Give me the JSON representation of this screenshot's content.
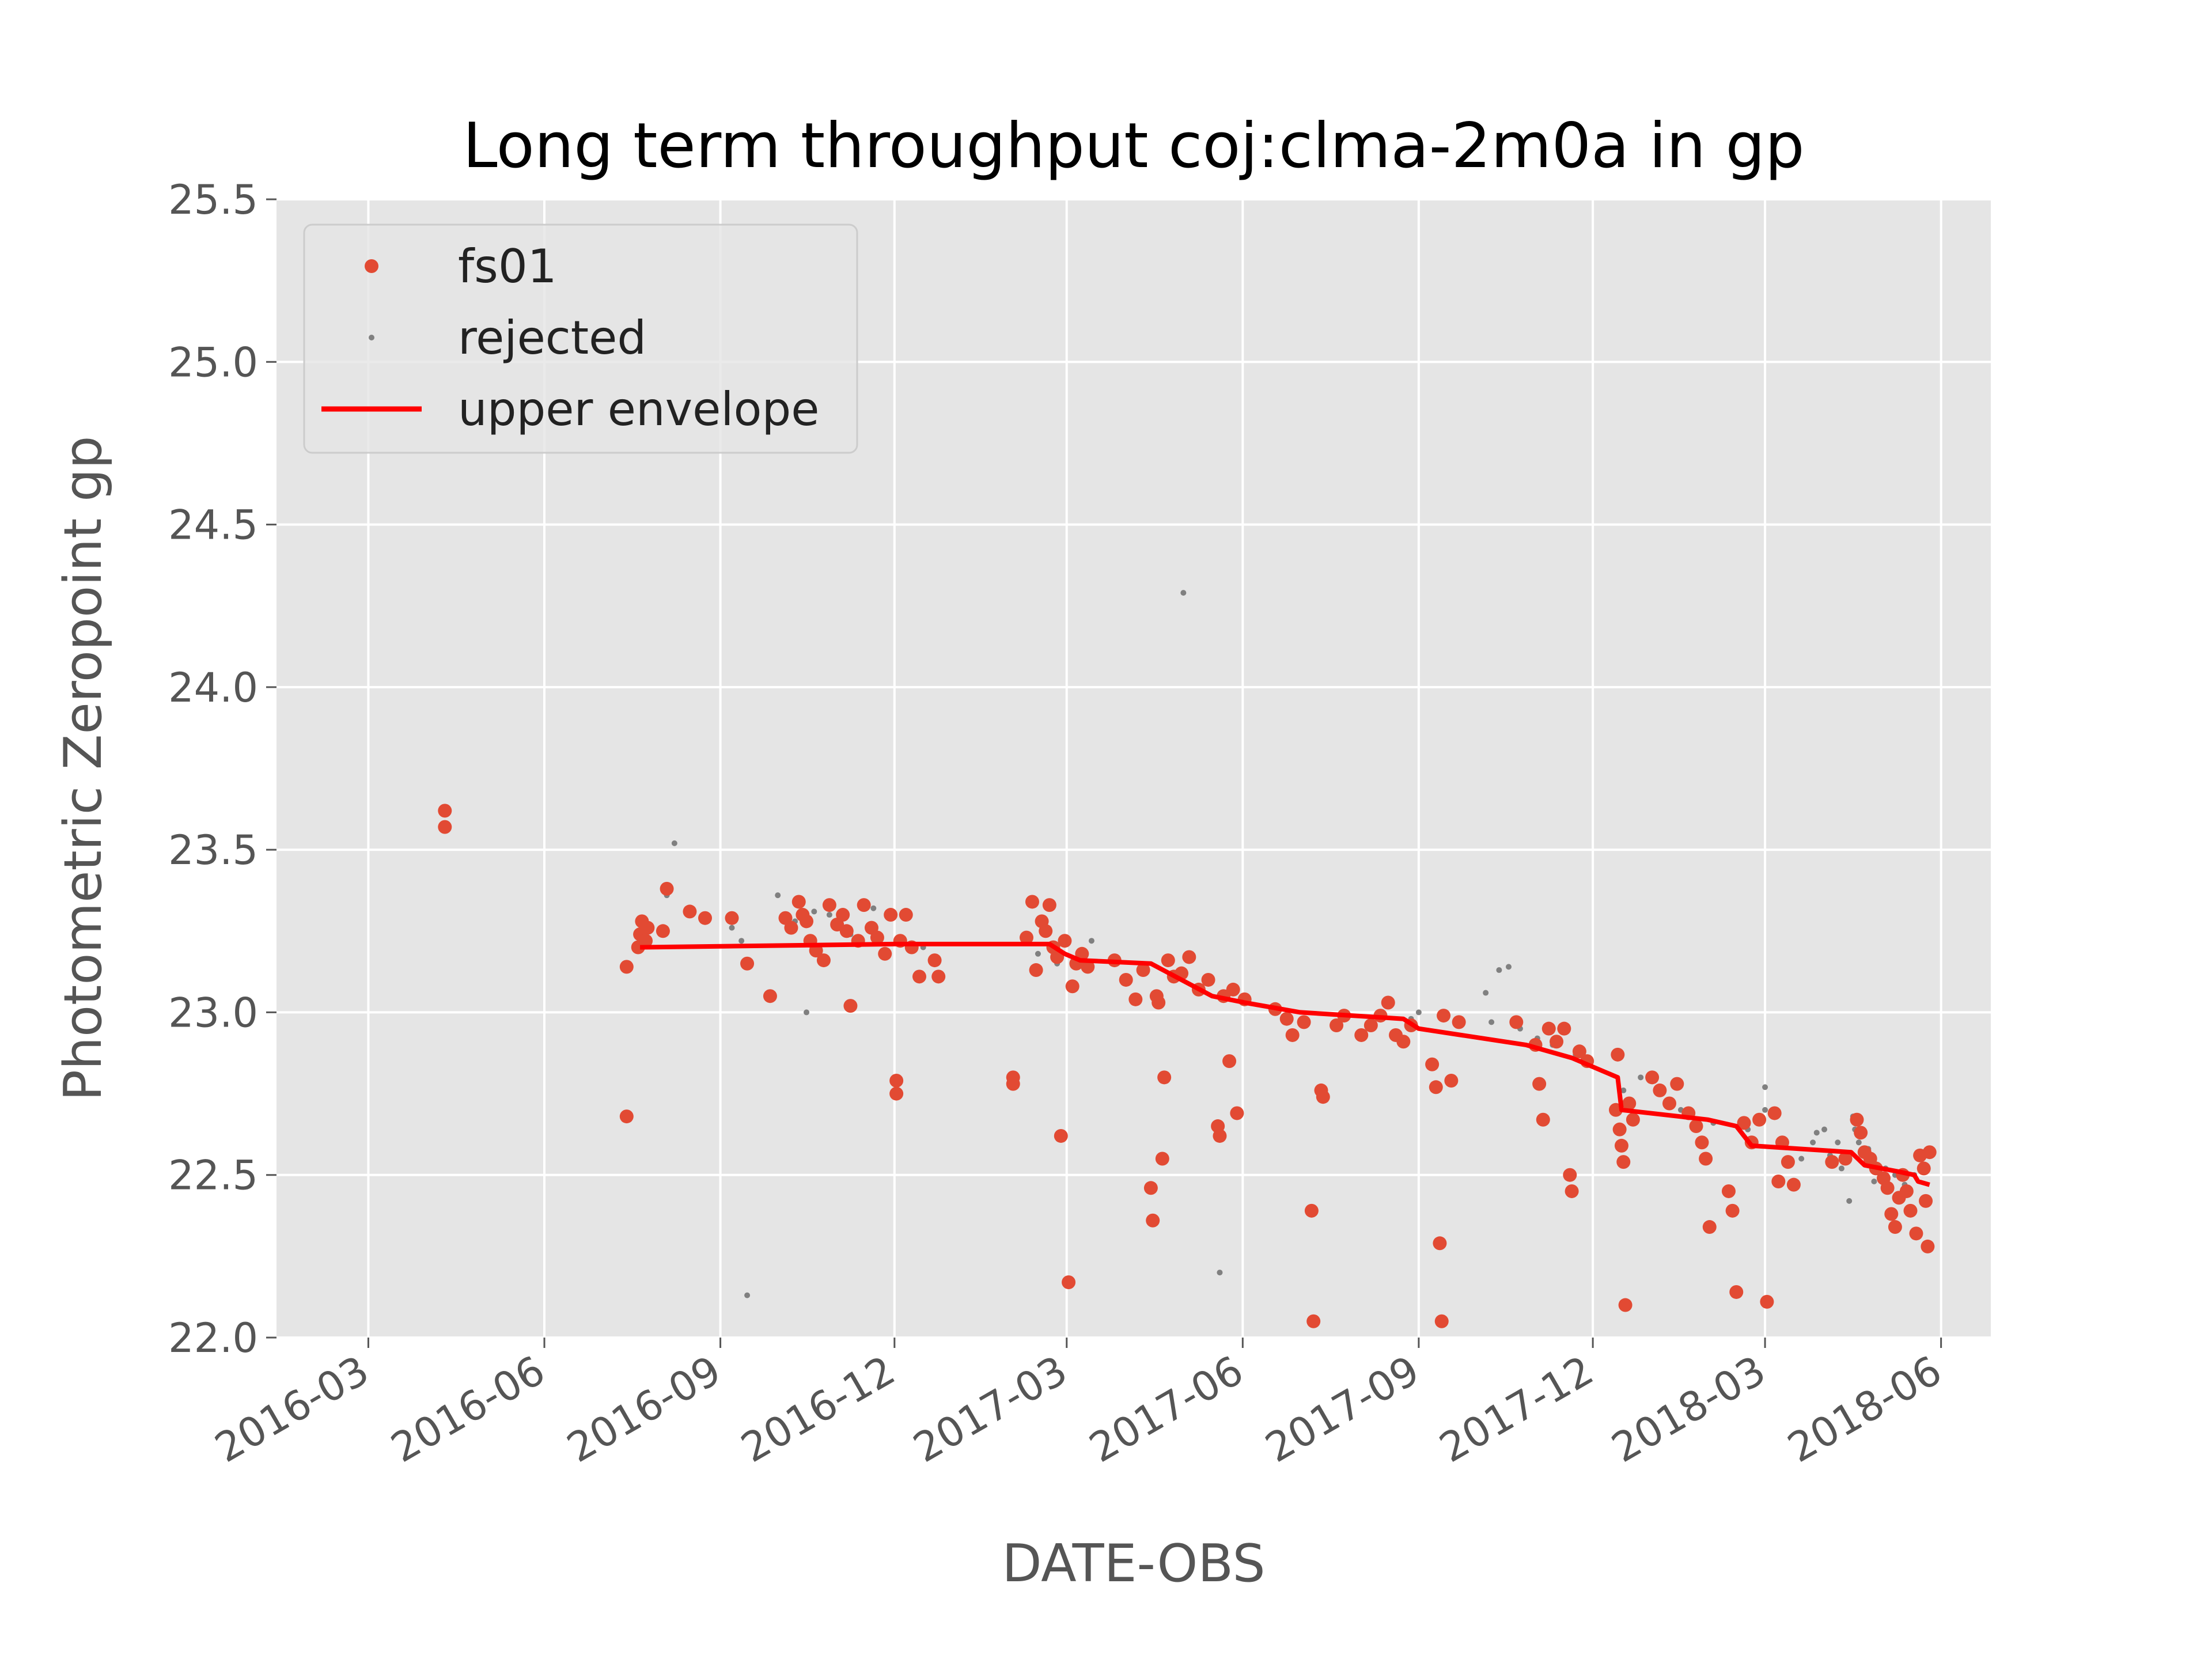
{
  "chart_data": {
    "type": "scatter",
    "title": "Long term throughput  coj:clma-2m0a in gp",
    "xlabel": "DATE-OBS",
    "ylabel": "Photometric Zeropoint gp",
    "xlim": [
      "2016-01-13",
      "2018-06-27"
    ],
    "ylim": [
      22.0,
      25.5
    ],
    "grid": true,
    "legend_position": "upper-left",
    "x_ticks": [
      "2016-03",
      "2016-06",
      "2016-09",
      "2016-12",
      "2017-03",
      "2017-06",
      "2017-09",
      "2017-12",
      "2018-03",
      "2018-06"
    ],
    "y_ticks": [
      "22.0",
      "22.5",
      "23.0",
      "23.5",
      "24.0",
      "24.5",
      "25.0",
      "25.5"
    ],
    "colors": {
      "fs01": "#e24a33",
      "rejected": "#808080",
      "upper_envelope": "#ff0000",
      "plot_background": "#e5e5e5",
      "grid": "#ffffff"
    },
    "series": [
      {
        "name": "fs01",
        "style": "points",
        "points": [
          [
            "2016-04-10",
            23.62
          ],
          [
            "2016-04-10",
            23.57
          ],
          [
            "2016-07-14",
            22.68
          ],
          [
            "2016-07-14",
            23.14
          ],
          [
            "2016-07-20",
            23.2
          ],
          [
            "2016-07-21",
            23.24
          ],
          [
            "2016-07-22",
            23.28
          ],
          [
            "2016-07-24",
            23.22
          ],
          [
            "2016-07-25",
            23.26
          ],
          [
            "2016-08-02",
            23.25
          ],
          [
            "2016-08-04",
            23.38
          ],
          [
            "2016-08-16",
            23.31
          ],
          [
            "2016-08-24",
            23.29
          ],
          [
            "2016-09-07",
            23.29
          ],
          [
            "2016-09-15",
            23.15
          ],
          [
            "2016-09-27",
            23.05
          ],
          [
            "2016-10-05",
            23.29
          ],
          [
            "2016-10-08",
            23.26
          ],
          [
            "2016-10-12",
            23.34
          ],
          [
            "2016-10-14",
            23.3
          ],
          [
            "2016-10-16",
            23.28
          ],
          [
            "2016-10-18",
            23.22
          ],
          [
            "2016-10-21",
            23.19
          ],
          [
            "2016-10-25",
            23.16
          ],
          [
            "2016-10-28",
            23.33
          ],
          [
            "2016-11-01",
            23.27
          ],
          [
            "2016-11-04",
            23.3
          ],
          [
            "2016-11-06",
            23.25
          ],
          [
            "2016-11-08",
            23.02
          ],
          [
            "2016-11-12",
            23.22
          ],
          [
            "2016-11-15",
            23.33
          ],
          [
            "2016-11-19",
            23.26
          ],
          [
            "2016-11-22",
            23.23
          ],
          [
            "2016-11-26",
            23.18
          ],
          [
            "2016-11-29",
            23.3
          ],
          [
            "2016-12-02",
            22.79
          ],
          [
            "2016-12-02",
            22.75
          ],
          [
            "2016-12-04",
            23.22
          ],
          [
            "2016-12-07",
            23.3
          ],
          [
            "2016-12-10",
            23.2
          ],
          [
            "2016-12-14",
            23.11
          ],
          [
            "2016-12-22",
            23.16
          ],
          [
            "2016-12-24",
            23.11
          ],
          [
            "2017-02-01",
            22.8
          ],
          [
            "2017-02-01",
            22.78
          ],
          [
            "2017-02-08",
            23.23
          ],
          [
            "2017-02-11",
            23.34
          ],
          [
            "2017-02-13",
            23.13
          ],
          [
            "2017-02-16",
            23.28
          ],
          [
            "2017-02-18",
            23.25
          ],
          [
            "2017-02-20",
            23.33
          ],
          [
            "2017-02-22",
            23.2
          ],
          [
            "2017-02-24",
            23.17
          ],
          [
            "2017-02-26",
            22.62
          ],
          [
            "2017-02-28",
            23.22
          ],
          [
            "2017-03-02",
            22.17
          ],
          [
            "2017-03-04",
            23.08
          ],
          [
            "2017-03-06",
            23.15
          ],
          [
            "2017-03-09",
            23.18
          ],
          [
            "2017-03-12",
            23.14
          ],
          [
            "2017-03-26",
            23.16
          ],
          [
            "2017-04-01",
            23.1
          ],
          [
            "2017-04-06",
            23.04
          ],
          [
            "2017-04-10",
            23.13
          ],
          [
            "2017-04-14",
            22.46
          ],
          [
            "2017-04-15",
            22.36
          ],
          [
            "2017-04-17",
            23.05
          ],
          [
            "2017-04-18",
            23.03
          ],
          [
            "2017-04-20",
            22.55
          ],
          [
            "2017-04-21",
            22.8
          ],
          [
            "2017-04-23",
            23.16
          ],
          [
            "2017-04-26",
            23.11
          ],
          [
            "2017-04-30",
            23.12
          ],
          [
            "2017-05-04",
            23.17
          ],
          [
            "2017-05-09",
            23.07
          ],
          [
            "2017-05-14",
            23.1
          ],
          [
            "2017-05-19",
            22.65
          ],
          [
            "2017-05-20",
            22.62
          ],
          [
            "2017-05-22",
            23.05
          ],
          [
            "2017-05-25",
            22.85
          ],
          [
            "2017-05-27",
            23.07
          ],
          [
            "2017-05-29",
            22.69
          ],
          [
            "2017-06-02",
            23.04
          ],
          [
            "2017-06-18",
            23.01
          ],
          [
            "2017-06-24",
            22.98
          ],
          [
            "2017-06-27",
            22.93
          ],
          [
            "2017-07-03",
            22.97
          ],
          [
            "2017-07-07",
            22.39
          ],
          [
            "2017-07-08",
            22.05
          ],
          [
            "2017-07-12",
            22.76
          ],
          [
            "2017-07-13",
            22.74
          ],
          [
            "2017-07-20",
            22.96
          ],
          [
            "2017-07-24",
            22.99
          ],
          [
            "2017-08-02",
            22.93
          ],
          [
            "2017-08-07",
            22.96
          ],
          [
            "2017-08-12",
            22.99
          ],
          [
            "2017-08-16",
            23.03
          ],
          [
            "2017-08-20",
            22.93
          ],
          [
            "2017-08-24",
            22.91
          ],
          [
            "2017-08-28",
            22.96
          ],
          [
            "2017-09-08",
            22.84
          ],
          [
            "2017-09-10",
            22.77
          ],
          [
            "2017-09-12",
            22.29
          ],
          [
            "2017-09-13",
            22.05
          ],
          [
            "2017-09-14",
            22.99
          ],
          [
            "2017-09-18",
            22.79
          ],
          [
            "2017-09-22",
            22.97
          ],
          [
            "2017-10-22",
            22.97
          ],
          [
            "2017-11-01",
            22.9
          ],
          [
            "2017-11-03",
            22.78
          ],
          [
            "2017-11-05",
            22.67
          ],
          [
            "2017-11-08",
            22.95
          ],
          [
            "2017-11-12",
            22.91
          ],
          [
            "2017-11-16",
            22.95
          ],
          [
            "2017-11-19",
            22.5
          ],
          [
            "2017-11-20",
            22.45
          ],
          [
            "2017-11-24",
            22.88
          ],
          [
            "2017-11-28",
            22.85
          ],
          [
            "2017-12-13",
            22.7
          ],
          [
            "2017-12-14",
            22.87
          ],
          [
            "2017-12-15",
            22.64
          ],
          [
            "2017-12-16",
            22.59
          ],
          [
            "2017-12-17",
            22.54
          ],
          [
            "2017-12-18",
            22.1
          ],
          [
            "2017-12-20",
            22.72
          ],
          [
            "2017-12-22",
            22.67
          ],
          [
            "2018-01-01",
            22.8
          ],
          [
            "2018-01-05",
            22.76
          ],
          [
            "2018-01-10",
            22.72
          ],
          [
            "2018-01-14",
            22.78
          ],
          [
            "2018-01-20",
            22.69
          ],
          [
            "2018-01-24",
            22.65
          ],
          [
            "2018-01-27",
            22.6
          ],
          [
            "2018-01-29",
            22.55
          ],
          [
            "2018-01-31",
            22.34
          ],
          [
            "2018-02-10",
            22.45
          ],
          [
            "2018-02-12",
            22.39
          ],
          [
            "2018-02-14",
            22.14
          ],
          [
            "2018-02-18",
            22.66
          ],
          [
            "2018-02-22",
            22.6
          ],
          [
            "2018-02-26",
            22.67
          ],
          [
            "2018-03-02",
            22.11
          ],
          [
            "2018-03-06",
            22.69
          ],
          [
            "2018-03-08",
            22.48
          ],
          [
            "2018-03-10",
            22.6
          ],
          [
            "2018-03-13",
            22.54
          ],
          [
            "2018-03-16",
            22.47
          ],
          [
            "2018-04-05",
            22.54
          ],
          [
            "2018-04-12",
            22.55
          ],
          [
            "2018-04-18",
            22.67
          ],
          [
            "2018-04-20",
            22.63
          ],
          [
            "2018-04-22",
            22.57
          ],
          [
            "2018-04-25",
            22.55
          ],
          [
            "2018-04-28",
            22.52
          ],
          [
            "2018-05-02",
            22.49
          ],
          [
            "2018-05-04",
            22.46
          ],
          [
            "2018-05-06",
            22.38
          ],
          [
            "2018-05-08",
            22.34
          ],
          [
            "2018-05-10",
            22.43
          ],
          [
            "2018-05-12",
            22.5
          ],
          [
            "2018-05-14",
            22.45
          ],
          [
            "2018-05-16",
            22.39
          ],
          [
            "2018-05-19",
            22.32
          ],
          [
            "2018-05-21",
            22.56
          ],
          [
            "2018-05-23",
            22.52
          ],
          [
            "2018-05-24",
            22.42
          ],
          [
            "2018-05-25",
            22.28
          ],
          [
            "2018-05-26",
            22.57
          ]
        ]
      },
      {
        "name": "rejected",
        "style": "points",
        "points": [
          [
            "2016-07-22",
            23.22
          ],
          [
            "2016-08-04",
            23.36
          ],
          [
            "2016-08-08",
            23.52
          ],
          [
            "2016-09-07",
            23.26
          ],
          [
            "2016-09-12",
            23.22
          ],
          [
            "2016-09-15",
            22.13
          ],
          [
            "2016-10-01",
            23.36
          ],
          [
            "2016-10-10",
            23.28
          ],
          [
            "2016-10-16",
            23.0
          ],
          [
            "2016-10-20",
            23.31
          ],
          [
            "2016-10-28",
            23.3
          ],
          [
            "2016-11-08",
            23.24
          ],
          [
            "2016-11-20",
            23.32
          ],
          [
            "2016-11-28",
            23.29
          ],
          [
            "2016-12-16",
            23.2
          ],
          [
            "2017-02-14",
            23.18
          ],
          [
            "2017-02-24",
            23.15
          ],
          [
            "2017-03-14",
            23.22
          ],
          [
            "2017-05-01",
            24.29
          ],
          [
            "2017-05-20",
            22.2
          ],
          [
            "2017-05-29",
            22.7
          ],
          [
            "2017-08-28",
            22.98
          ],
          [
            "2017-09-01",
            23.0
          ],
          [
            "2017-10-06",
            23.06
          ],
          [
            "2017-10-09",
            22.97
          ],
          [
            "2017-10-13",
            23.13
          ],
          [
            "2017-10-18",
            23.14
          ],
          [
            "2017-10-24",
            22.95
          ],
          [
            "2017-11-02",
            22.92
          ],
          [
            "2017-11-10",
            22.9
          ],
          [
            "2017-11-22",
            22.87
          ],
          [
            "2017-12-17",
            22.76
          ],
          [
            "2017-12-26",
            22.8
          ],
          [
            "2018-01-16",
            22.7
          ],
          [
            "2018-02-02",
            22.66
          ],
          [
            "2018-02-20",
            22.64
          ],
          [
            "2018-03-01",
            22.77
          ],
          [
            "2018-03-01",
            22.7
          ],
          [
            "2018-03-20",
            22.55
          ],
          [
            "2018-03-26",
            22.6
          ],
          [
            "2018-03-28",
            22.63
          ],
          [
            "2018-04-01",
            22.64
          ],
          [
            "2018-04-04",
            22.56
          ],
          [
            "2018-04-08",
            22.6
          ],
          [
            "2018-04-10",
            22.52
          ],
          [
            "2018-04-14",
            22.42
          ],
          [
            "2018-04-16",
            22.68
          ],
          [
            "2018-04-17",
            22.64
          ],
          [
            "2018-04-19",
            22.6
          ],
          [
            "2018-04-24",
            22.58
          ],
          [
            "2018-04-27",
            22.48
          ],
          [
            "2018-05-03",
            22.52
          ],
          [
            "2018-05-08",
            22.5
          ],
          [
            "2018-05-13",
            22.47
          ],
          [
            "2018-05-18",
            22.5
          ]
        ]
      },
      {
        "name": "upper envelope",
        "style": "line",
        "points": [
          [
            "2016-07-21",
            23.2
          ],
          [
            "2016-12-01",
            23.21
          ],
          [
            "2017-02-20",
            23.21
          ],
          [
            "2017-02-28",
            23.18
          ],
          [
            "2017-03-08",
            23.16
          ],
          [
            "2017-04-14",
            23.15
          ],
          [
            "2017-05-16",
            23.05
          ],
          [
            "2017-06-02",
            23.03
          ],
          [
            "2017-07-01",
            23.0
          ],
          [
            "2017-08-24",
            22.98
          ],
          [
            "2017-09-01",
            22.95
          ],
          [
            "2017-10-27",
            22.9
          ],
          [
            "2017-11-20",
            22.86
          ],
          [
            "2017-12-14",
            22.8
          ],
          [
            "2017-12-16",
            22.7
          ],
          [
            "2018-01-30",
            22.67
          ],
          [
            "2018-02-14",
            22.65
          ],
          [
            "2018-02-22",
            22.59
          ],
          [
            "2018-04-15",
            22.57
          ],
          [
            "2018-04-22",
            22.53
          ],
          [
            "2018-05-10",
            22.51
          ],
          [
            "2018-05-18",
            22.5
          ],
          [
            "2018-05-20",
            22.48
          ],
          [
            "2018-05-26",
            22.47
          ]
        ]
      }
    ]
  }
}
